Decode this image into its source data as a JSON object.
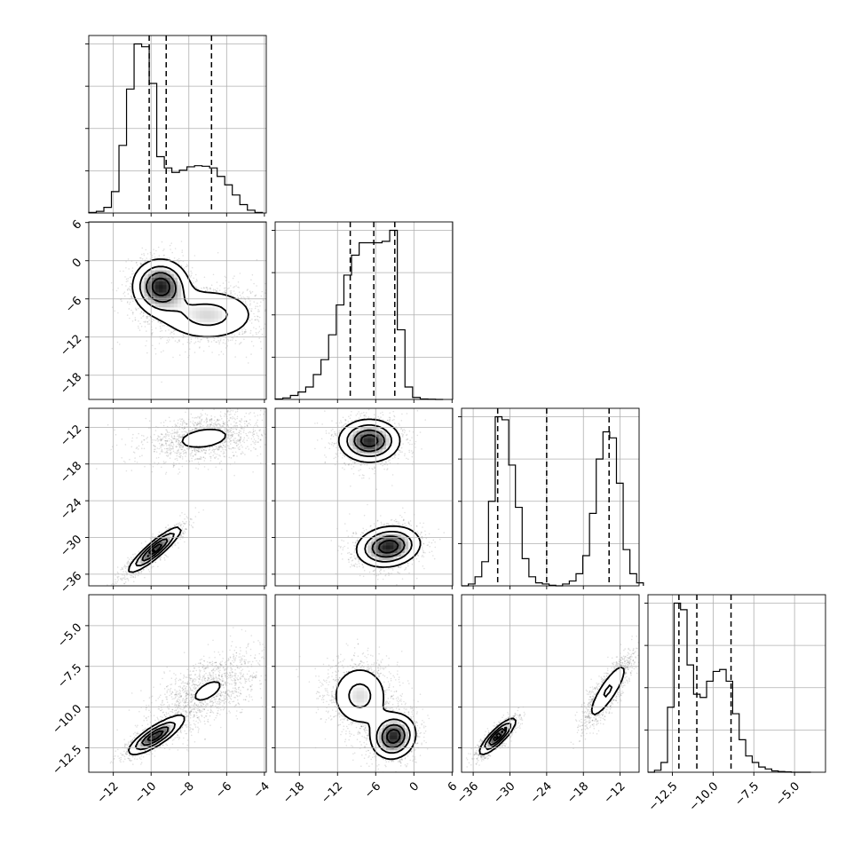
{
  "chart_data": {
    "type": "corner",
    "n_params": 4,
    "grid": true,
    "ticks": [
      {
        "values": [
          -12,
          -10,
          -8,
          -6,
          -4
        ],
        "labels": [
          "−12",
          "−10",
          "−8",
          "−6",
          "−4"
        ]
      },
      {
        "values": [
          -18,
          -12,
          -6,
          0,
          6
        ],
        "labels": [
          "−18",
          "−12",
          "−6",
          "0",
          "6"
        ]
      },
      {
        "values": [
          -36,
          -30,
          -24,
          -18,
          -12
        ],
        "labels": [
          "−36",
          "−30",
          "−24",
          "−18",
          "−12"
        ]
      },
      {
        "values": [
          -12.5,
          -10.0,
          -7.5,
          -5.0
        ],
        "labels": [
          "−12.5",
          "−10.0",
          "−7.5",
          "−5.0"
        ]
      }
    ],
    "ranges": [
      [
        -13.3,
        -3.9
      ],
      [
        -21.8,
        6.1
      ],
      [
        -37.9,
        -8.9
      ],
      [
        -14.0,
        -3.1
      ]
    ],
    "quantiles": [
      [
        -10.1,
        -9.2,
        -6.8
      ],
      [
        -10.0,
        -6.3,
        -3.0
      ],
      [
        -32.0,
        -24.0,
        -13.8
      ],
      [
        -12.1,
        -11.0,
        -8.9
      ]
    ],
    "histograms": [
      {
        "edges": [
          -13.3,
          -12.9,
          -12.5,
          -12.1,
          -11.7,
          -11.3,
          -10.9,
          -10.5,
          -10.1,
          -9.7,
          -9.3,
          -8.9,
          -8.5,
          -8.1,
          -7.7,
          -7.3,
          -6.9,
          -6.5,
          -6.1,
          -5.7,
          -5.3,
          -4.9,
          -4.5,
          -4.1
        ],
        "counts": [
          0.1,
          0.3,
          1.0,
          3.8,
          12.0,
          22.0,
          30.0,
          29.5,
          23.0,
          10.0,
          8.0,
          7.2,
          7.6,
          8.2,
          8.4,
          8.3,
          8.0,
          6.5,
          5.0,
          3.2,
          1.5,
          0.5,
          0.1
        ]
      },
      {
        "edges": [
          -21.8,
          -20.6,
          -19.4,
          -18.2,
          -17.0,
          -15.8,
          -14.6,
          -13.4,
          -12.2,
          -11.0,
          -9.8,
          -8.6,
          -7.4,
          -6.2,
          -5.0,
          -3.8,
          -2.6,
          -1.4,
          -0.2,
          1.0,
          2.2,
          3.4,
          4.6
        ],
        "counts": [
          0.1,
          0.3,
          0.8,
          1.5,
          2.5,
          5.0,
          8.0,
          13.0,
          19.0,
          25.0,
          29.0,
          31.5,
          31.5,
          31.5,
          31.8,
          34.0,
          14.0,
          2.5,
          0.4,
          0.1,
          0.05,
          0.0
        ]
      },
      {
        "edges": [
          -37.9,
          -36.8,
          -35.7,
          -34.6,
          -33.5,
          -32.4,
          -31.3,
          -30.2,
          -29.1,
          -28.0,
          -26.9,
          -25.8,
          -24.7,
          -23.6,
          -22.5,
          -21.4,
          -20.3,
          -19.2,
          -18.1,
          -17.0,
          -15.9,
          -14.8,
          -13.7,
          -12.6,
          -11.5,
          -10.4,
          -9.3,
          -8.2
        ],
        "counts": [
          0.0,
          0.3,
          1.5,
          4.0,
          14.0,
          28.0,
          27.5,
          20.0,
          13.0,
          4.5,
          1.5,
          0.5,
          0.3,
          0.1,
          0.0,
          0.3,
          0.8,
          2.0,
          5.0,
          12.0,
          21.0,
          25.5,
          24.5,
          17.0,
          6.0,
          2.0,
          0.5
        ]
      },
      {
        "edges": [
          -14.0,
          -13.6,
          -13.2,
          -12.8,
          -12.4,
          -12.0,
          -11.6,
          -11.2,
          -10.8,
          -10.4,
          -10.0,
          -9.6,
          -9.2,
          -8.8,
          -8.4,
          -8.0,
          -7.6,
          -7.2,
          -6.8,
          -6.4,
          -6.0,
          -5.6,
          -5.2,
          -4.8,
          -4.4,
          -4.0
        ],
        "counts": [
          0.0,
          0.3,
          1.5,
          10.0,
          26.0,
          25.0,
          16.5,
          12.0,
          11.5,
          14.0,
          15.5,
          15.8,
          14.0,
          9.0,
          5.0,
          2.5,
          1.5,
          0.8,
          0.5,
          0.2,
          0.1,
          0.05,
          0.0,
          0.0,
          0.0
        ]
      }
    ],
    "panels_2d": [
      {
        "row": 1,
        "col": 0,
        "modes": [
          {
            "mx": -9.5,
            "my": -4.0,
            "sx": 0.8,
            "sy": 2.3,
            "rho": 0.0,
            "w": 0.5
          },
          {
            "mx": -7.0,
            "my": -8.5,
            "sx": 1.5,
            "sy": 2.4,
            "rho": 0.0,
            "w": 0.5
          }
        ]
      },
      {
        "row": 2,
        "col": 0,
        "modes": [
          {
            "mx": -9.8,
            "my": -32.0,
            "sx": 0.75,
            "sy": 2.0,
            "rho": 0.9,
            "w": 0.5
          },
          {
            "mx": -7.2,
            "my": -13.8,
            "sx": 1.5,
            "sy": 1.9,
            "rho": 0.3,
            "w": 0.5
          }
        ]
      },
      {
        "row": 3,
        "col": 0,
        "modes": [
          {
            "mx": -9.8,
            "my": -11.8,
            "sx": 0.75,
            "sy": 0.6,
            "rho": 0.8,
            "w": 0.5
          },
          {
            "mx": -7.0,
            "my": -9.0,
            "sx": 1.4,
            "sy": 1.2,
            "rho": 0.6,
            "w": 0.5
          }
        ]
      },
      {
        "row": 2,
        "col": 1,
        "modes": [
          {
            "mx": -7.0,
            "my": -14.2,
            "sx": 2.6,
            "sy": 1.9,
            "rho": 0.0,
            "w": 0.5
          },
          {
            "mx": -4.0,
            "my": -31.5,
            "sx": 2.7,
            "sy": 1.8,
            "rho": 0.15,
            "w": 0.5
          }
        ]
      },
      {
        "row": 3,
        "col": 1,
        "modes": [
          {
            "mx": -8.5,
            "my": -9.3,
            "sx": 2.6,
            "sy": 1.1,
            "rho": 0.0,
            "w": 0.5
          },
          {
            "mx": -3.2,
            "my": -11.8,
            "sx": 1.9,
            "sy": 0.75,
            "rho": 0.1,
            "w": 0.5
          }
        ]
      },
      {
        "row": 3,
        "col": 2,
        "modes": [
          {
            "mx": -32.0,
            "my": -11.8,
            "sx": 1.6,
            "sy": 0.6,
            "rho": 0.85,
            "w": 0.5
          },
          {
            "mx": -14.0,
            "my": -9.0,
            "sx": 2.0,
            "sy": 1.1,
            "rho": 0.85,
            "w": 0.5
          }
        ]
      }
    ]
  }
}
